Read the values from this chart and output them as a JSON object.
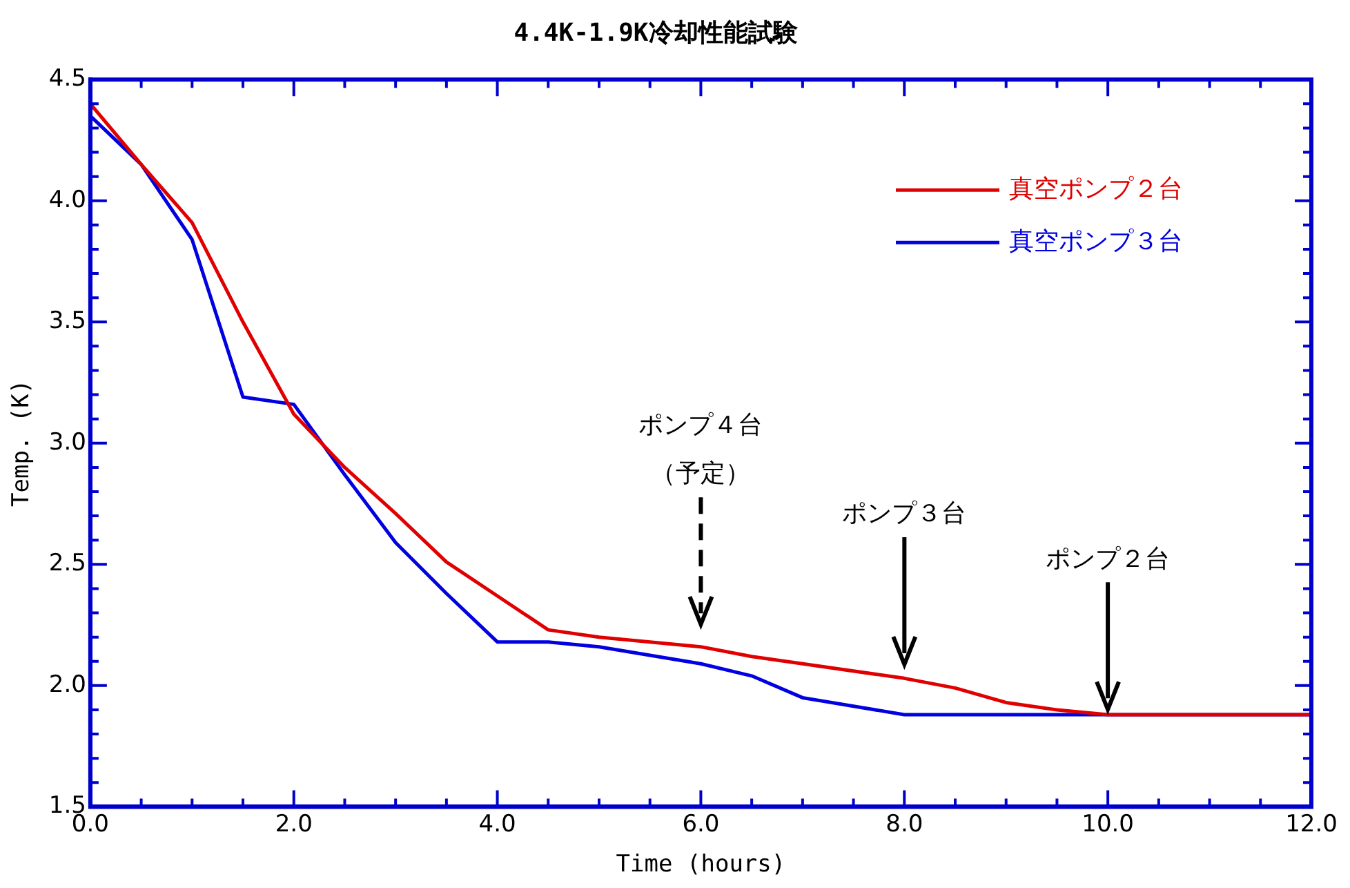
{
  "chart_data": {
    "type": "line",
    "title": "4.4K-1.9K冷却性能試験",
    "xlabel": "Time (hours)",
    "ylabel": "Temp. (K)",
    "xlim": [
      0,
      12
    ],
    "xticks": [
      {
        "value": 0,
        "label": "0.0"
      },
      {
        "value": 2,
        "label": "2.0"
      },
      {
        "value": 4,
        "label": "4.0"
      },
      {
        "value": 6,
        "label": "6.0"
      },
      {
        "value": 8,
        "label": "8.0"
      },
      {
        "value": 10,
        "label": "10.0"
      },
      {
        "value": 12,
        "label": "12.0"
      }
    ],
    "ylim": [
      1.5,
      4.5
    ],
    "yticks": [
      1.5,
      {
        "value": 2,
        "label": "2.0"
      },
      2.5,
      {
        "value": 3,
        "label": "3.0"
      },
      3.5,
      {
        "value": 4,
        "label": "4.0"
      },
      4.5
    ],
    "grid": false,
    "legend": "top right",
    "marker": "none",
    "line_style": "solid",
    "series": [
      {
        "name": "真空ポンプ２台",
        "color": "#e00000",
        "x": [
          0,
          0.5,
          1,
          1.5,
          2,
          2.5,
          3,
          3.5,
          4,
          4.5,
          5,
          6,
          6.5,
          7,
          8,
          8.5,
          9,
          9.5,
          10,
          12
        ],
        "values": [
          4.4,
          4.15,
          3.91,
          3.5,
          3.12,
          2.9,
          2.71,
          2.51,
          2.37,
          2.23,
          2.2,
          2.16,
          2.12,
          2.09,
          2.03,
          1.99,
          1.93,
          1.9,
          1.88,
          1.88
        ]
      },
      {
        "name": "真空ポンプ３台",
        "color": "#0000e0",
        "x": [
          0,
          0.5,
          1,
          1.5,
          2,
          2.5,
          3,
          3.5,
          4,
          4.5,
          5,
          6,
          6.5,
          7,
          8,
          12
        ],
        "values": [
          4.35,
          4.15,
          3.84,
          3.19,
          3.16,
          2.87,
          2.59,
          2.38,
          2.18,
          2.18,
          2.16,
          2.09,
          2.04,
          1.95,
          1.88,
          1.88
        ]
      }
    ],
    "annotations": [
      "ポンプ４台",
      "（予定）",
      "ポンプ３台",
      "ポンプ２台"
    ]
  }
}
